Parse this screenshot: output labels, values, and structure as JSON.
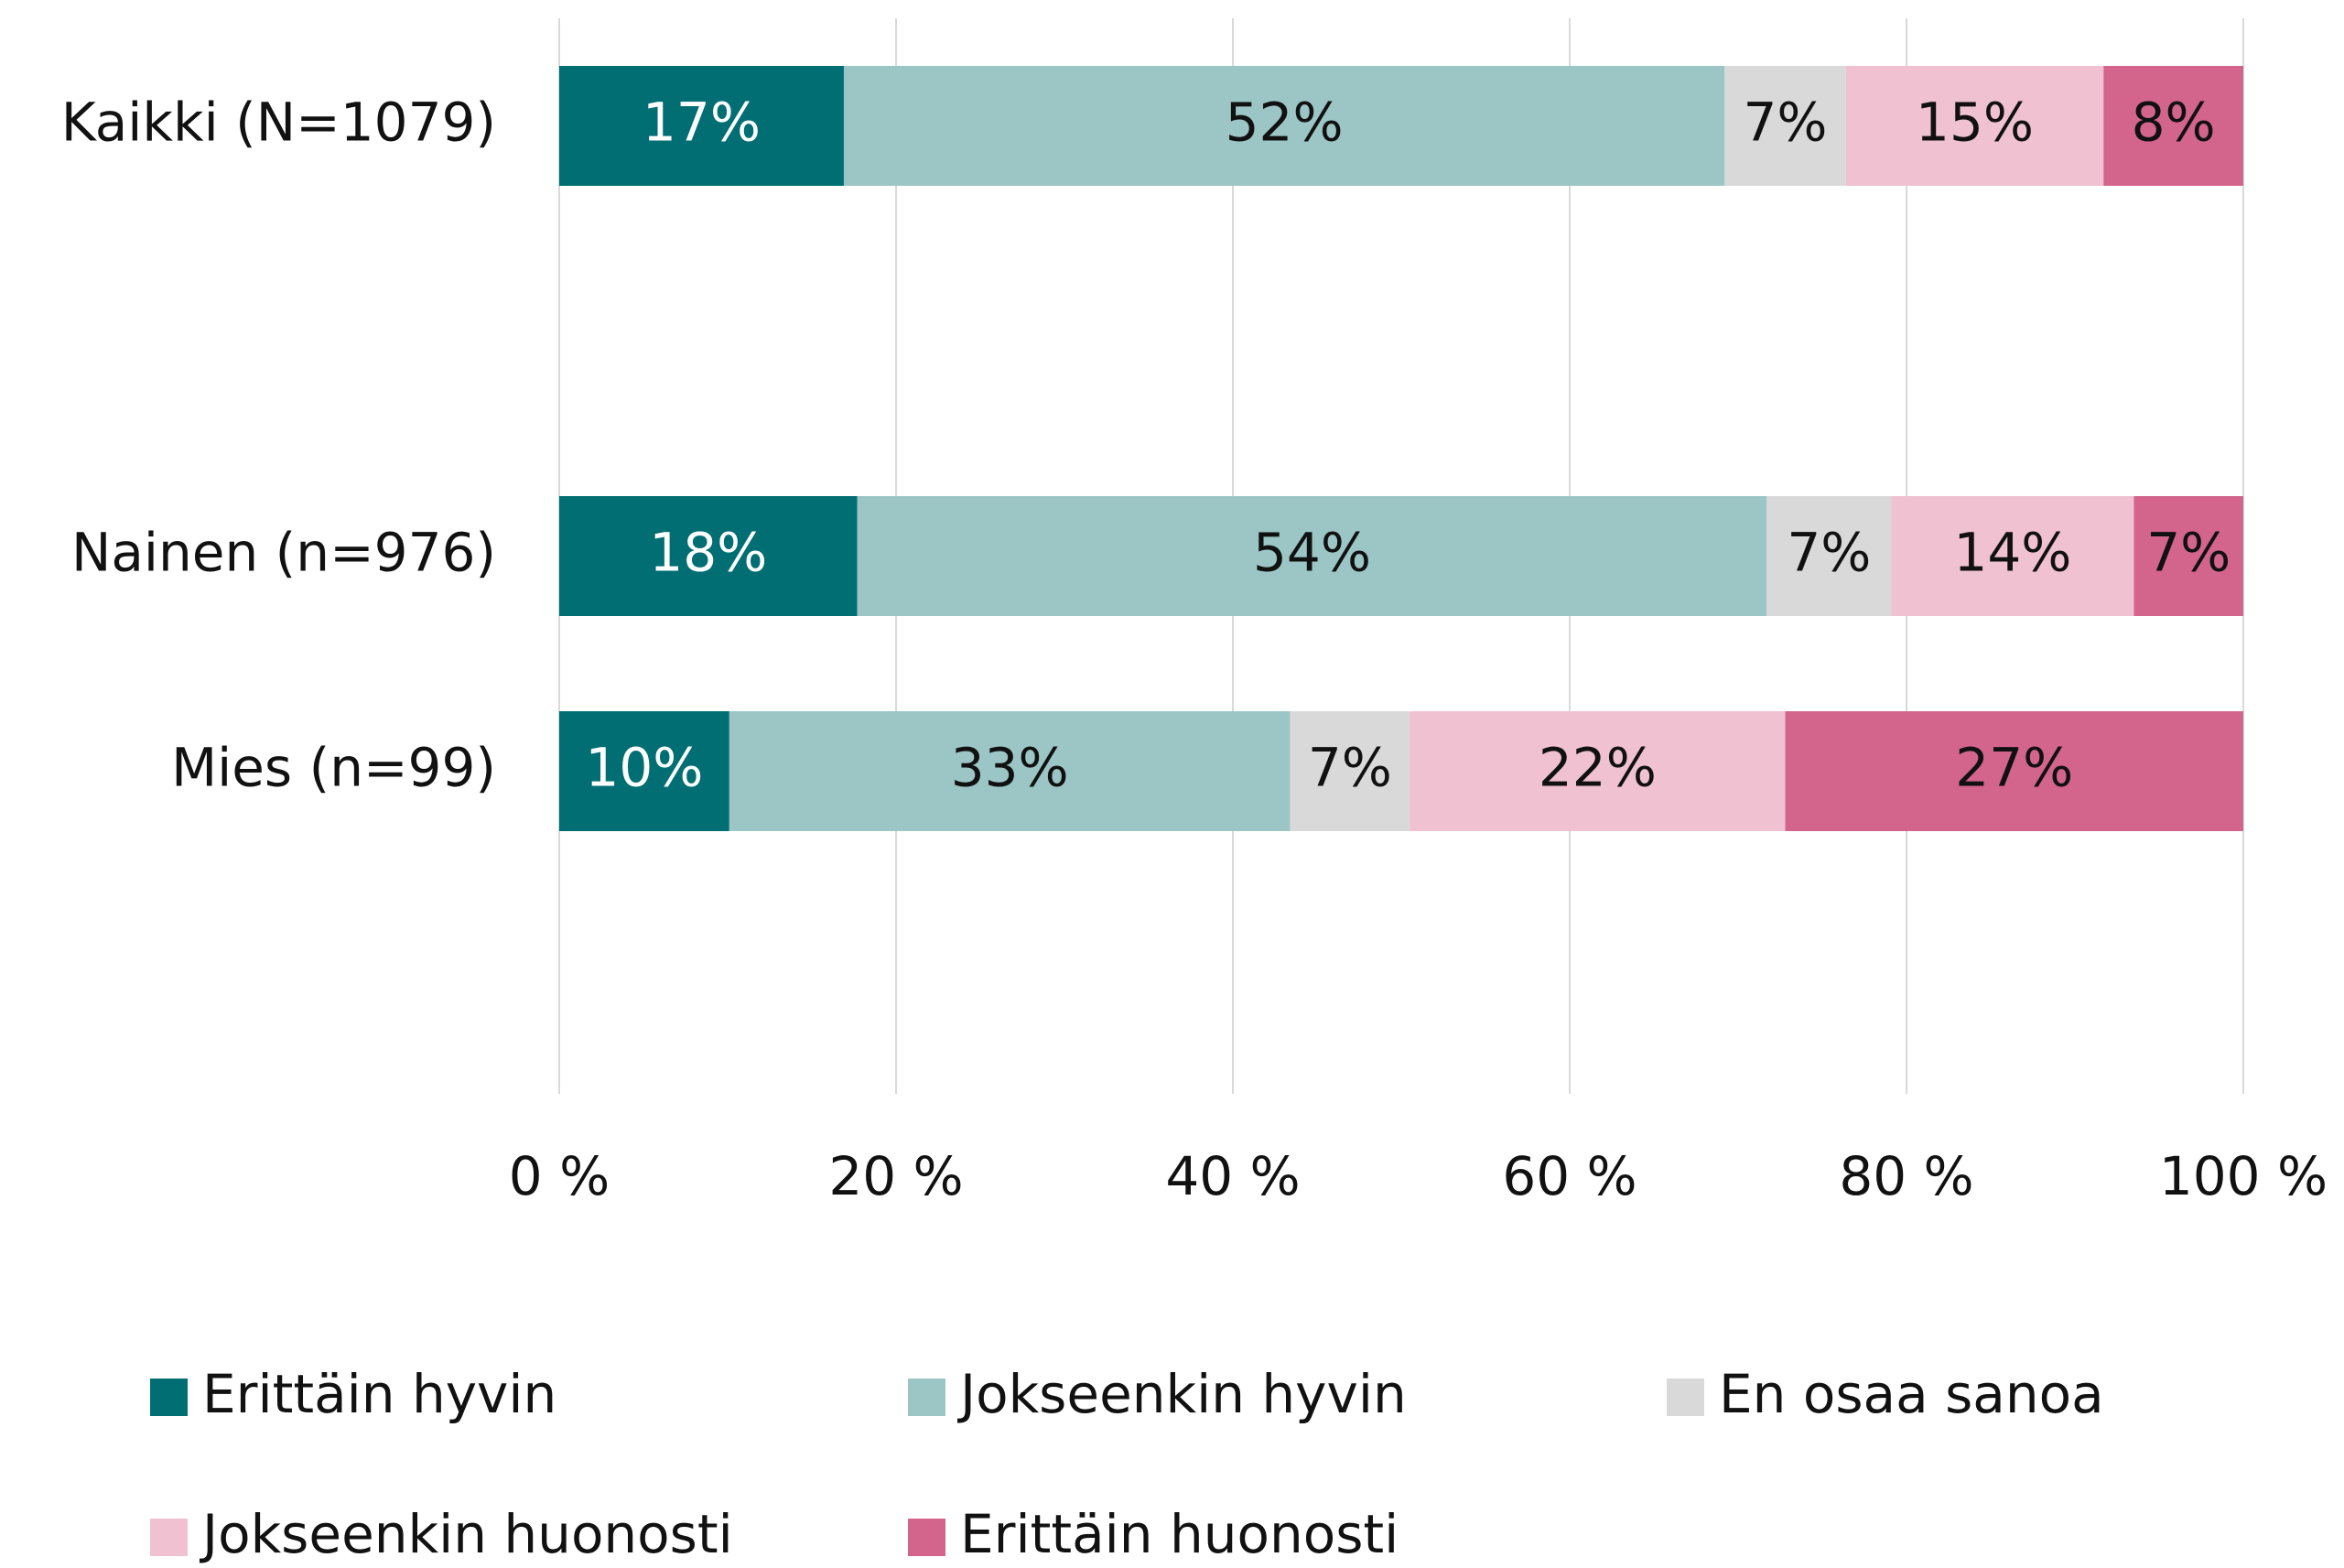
{
  "chart_data": {
    "type": "stacked-bar-horizontal",
    "categories": [
      "Kaikki (N=1079)",
      null,
      "Nainen (n=976)",
      "Mies (n=99)",
      null
    ],
    "series": [
      {
        "name": "Erittäin hyvin",
        "color": "#006e73",
        "values": [
          16.9,
          null,
          17.7,
          10.1,
          null
        ],
        "value_labels": [
          "17%",
          null,
          "18%",
          "10%",
          null
        ]
      },
      {
        "name": "Jokseenkin hyvin",
        "color": "#9cc5c5",
        "values": [
          52.3,
          null,
          54.0,
          33.3,
          null
        ],
        "value_labels": [
          "52%",
          null,
          "54%",
          "33%",
          null
        ]
      },
      {
        "name": "En osaa sanoa",
        "color": "#d9d9d9",
        "values": [
          7.2,
          null,
          7.4,
          7.1,
          null
        ],
        "value_labels": [
          "7%",
          null,
          "7%",
          "7%",
          null
        ]
      },
      {
        "name": "Jokseenkin huonosti",
        "color": "#efc1d1",
        "values": [
          15.3,
          null,
          14.4,
          22.3,
          null
        ],
        "value_labels": [
          "15%",
          null,
          "14%",
          "22%",
          null
        ]
      },
      {
        "name": "Erittäin huonosti",
        "color": "#d3648b",
        "values": [
          8.3,
          null,
          6.5,
          27.2,
          null
        ],
        "value_labels": [
          "8%",
          null,
          "7%",
          "27%",
          null
        ]
      }
    ],
    "xlim": [
      0,
      100
    ],
    "xticks": [
      {
        "value": 0,
        "label": "0 %"
      },
      {
        "value": 20,
        "label": "20 %"
      },
      {
        "value": 40,
        "label": "40 %"
      },
      {
        "value": 60,
        "label": "60 %"
      },
      {
        "value": 80,
        "label": "80 %"
      },
      {
        "value": 100,
        "label": "100 %"
      }
    ],
    "grid": true,
    "legend": "bottom"
  }
}
